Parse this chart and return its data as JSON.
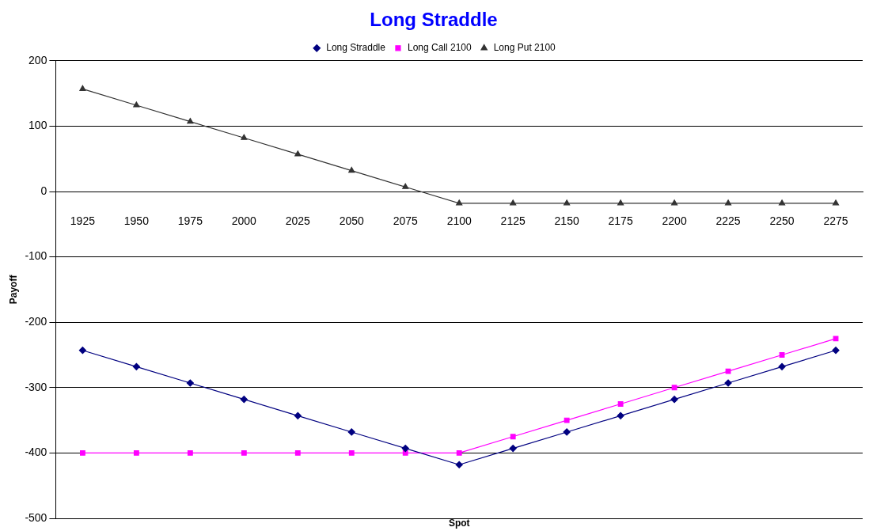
{
  "chart_data": {
    "type": "line",
    "title": "Long Straddle",
    "xlabel": "Spot",
    "ylabel": "Payoff",
    "categories": [
      "1925",
      "1950",
      "1975",
      "2000",
      "2025",
      "2050",
      "2075",
      "2100",
      "2125",
      "2150",
      "2175",
      "2200",
      "2225",
      "2250",
      "2275"
    ],
    "series": [
      {
        "name": "Long Straddle",
        "color": "#000080",
        "marker": "diamond",
        "values": [
          -243,
          -268,
          -293,
          -318,
          -343,
          -368,
          -393,
          -418,
          -393,
          -368,
          -343,
          -318,
          -293,
          -268,
          -243
        ]
      },
      {
        "name": "Long Call 2100",
        "color": "#ff00ff",
        "marker": "square",
        "values": [
          -400,
          -400,
          -400,
          -400,
          -400,
          -400,
          -400,
          -400,
          -375,
          -350,
          -325,
          -300,
          -275,
          -250,
          -225
        ]
      },
      {
        "name": "Long Put 2100",
        "color": "#333333",
        "marker": "triangle",
        "values": [
          157,
          132,
          107,
          82,
          57,
          32,
          7,
          -18,
          -18,
          -18,
          -18,
          -18,
          -18,
          -18,
          -18
        ]
      }
    ],
    "ylim": [
      -500,
      200
    ],
    "yticks": [
      -500,
      -400,
      -300,
      -200,
      -100,
      0,
      100,
      200
    ],
    "grid": "y",
    "legend": "top",
    "line_style": "solid"
  }
}
